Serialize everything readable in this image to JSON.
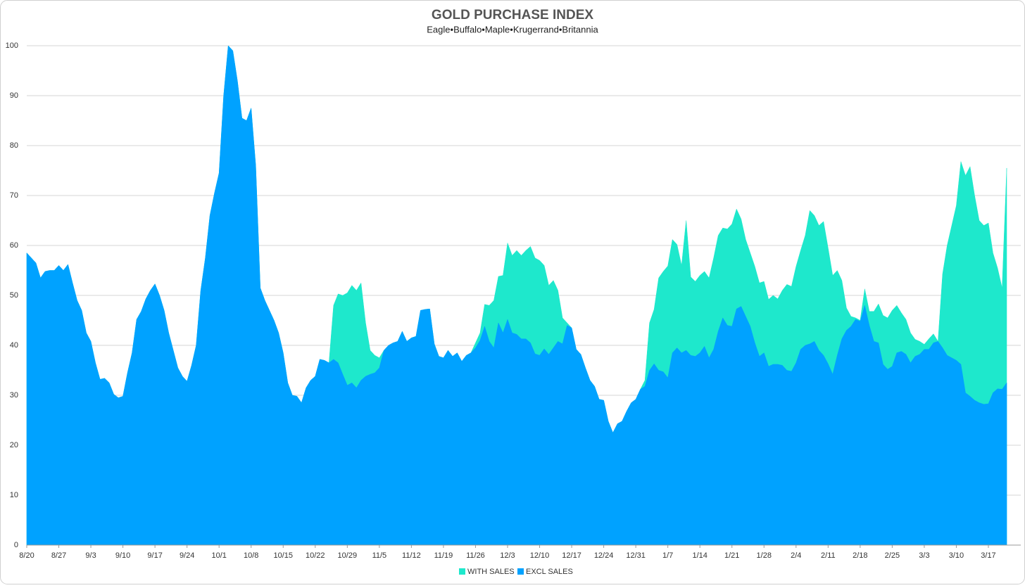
{
  "chart_data": {
    "type": "area",
    "title": "GOLD PURCHASE INDEX",
    "subtitle": "Eagle•Buffalo•Maple•Krugerrand•Britannia",
    "categories": [
      "8/20",
      null,
      null,
      null,
      null,
      null,
      null,
      "8/27",
      null,
      null,
      null,
      null,
      null,
      null,
      "9/3",
      null,
      null,
      null,
      null,
      null,
      null,
      "9/10",
      null,
      null,
      null,
      null,
      null,
      null,
      "9/17",
      null,
      null,
      null,
      null,
      null,
      null,
      "9/24",
      null,
      null,
      null,
      null,
      null,
      null,
      "10/1",
      null,
      null,
      null,
      null,
      null,
      null,
      "10/8",
      null,
      null,
      null,
      null,
      null,
      null,
      "10/15",
      null,
      null,
      null,
      null,
      null,
      null,
      "10/22",
      null,
      null,
      null,
      null,
      null,
      null,
      "10/29",
      null,
      null,
      null,
      null,
      null,
      null,
      "11/5",
      null,
      null,
      null,
      null,
      null,
      null,
      "11/12",
      null,
      null,
      null,
      null,
      null,
      null,
      "11/19",
      null,
      null,
      null,
      null,
      null,
      null,
      "11/26",
      null,
      null,
      null,
      null,
      null,
      null,
      "12/3",
      null,
      null,
      null,
      null,
      null,
      null,
      "12/10",
      null,
      null,
      null,
      null,
      null,
      null,
      "12/17",
      null,
      null,
      null,
      null,
      null,
      null,
      "12/24",
      null,
      null,
      null,
      null,
      null,
      null,
      "12/31",
      null,
      null,
      null,
      null,
      null,
      null,
      "1/7",
      null,
      null,
      null,
      null,
      null,
      null,
      "1/14",
      null,
      null,
      null,
      null,
      null,
      null,
      "1/21",
      null,
      null,
      null,
      null,
      null,
      null,
      "1/28",
      null,
      null,
      null,
      null,
      null,
      null,
      "2/4",
      null,
      null,
      null,
      null,
      null,
      null,
      "2/11",
      null,
      null,
      null,
      null,
      null,
      null,
      "2/18",
      null,
      null,
      null,
      null,
      null,
      null,
      "2/25",
      null,
      null,
      null,
      null,
      null,
      null,
      "3/3",
      null,
      null,
      null,
      null,
      null,
      null,
      "3/10",
      null,
      null,
      null,
      null,
      null,
      null,
      "3/17",
      null,
      null,
      null,
      null
    ],
    "series": [
      {
        "name": "WITH SALES",
        "color": "#1ee8cc",
        "values": [
          58.5,
          57.5,
          56.5,
          53.5,
          54.8,
          55,
          55,
          56,
          55,
          56.2,
          52.5,
          49,
          47,
          42.5,
          40.8,
          36.5,
          33.2,
          33.4,
          32.5,
          30.2,
          29.5,
          29.8,
          34.5,
          38.5,
          45.2,
          46.8,
          49.3,
          51,
          52.3,
          50,
          47,
          42.5,
          39,
          35.5,
          33.8,
          32.8,
          36,
          40,
          51,
          57.5,
          66,
          70.5,
          74.5,
          90,
          100,
          99,
          93,
          85.5,
          85,
          87.5,
          76,
          51.5,
          49,
          47,
          45,
          42.5,
          38.5,
          32.5,
          30,
          29.8,
          28.5,
          31.5,
          33,
          33.8,
          37.2,
          37,
          36.5,
          48,
          50.3,
          50,
          50.5,
          52,
          51,
          52.5,
          44.5,
          39,
          38,
          37.5,
          39,
          40,
          40.5,
          40.8,
          42.8,
          40.8,
          41.5,
          41.8,
          47,
          47.2,
          47.3,
          40.3,
          37.8,
          37.5,
          39,
          37.8,
          38.5,
          36.8,
          38,
          38.5,
          40.5,
          42.5,
          48.2,
          48,
          49,
          53.8,
          54,
          60.5,
          58,
          59,
          58,
          59,
          59.8,
          57.5,
          57,
          56,
          52,
          53,
          51,
          45.5,
          44.5,
          43.5,
          39.2,
          38.2,
          35.5,
          33,
          31.8,
          29.2,
          29,
          24.8,
          22.5,
          24.3,
          24.8,
          26.8,
          28.5,
          29.2,
          31.2,
          33,
          44.5,
          47.2,
          53.5,
          54.8,
          55.9,
          61.2,
          60.2,
          56,
          65,
          53.7,
          52.8,
          54,
          54.8,
          53.5,
          57.5,
          62,
          63.5,
          63.3,
          64.3,
          67.3,
          65.3,
          61.2,
          58.5,
          55.8,
          52.5,
          52.8,
          49.2,
          50,
          49.3,
          51,
          52.2,
          51.8,
          55.8,
          59,
          62,
          67,
          66,
          64,
          64.8,
          59.5,
          54,
          55,
          53,
          47.5,
          45.8,
          45.5,
          45,
          51.3,
          46.8,
          46.8,
          48.3,
          46,
          45.5,
          47,
          48,
          46.5,
          45.2,
          42.5,
          41.2,
          40.8,
          40.2,
          41.3,
          42.3,
          40.8,
          54.3,
          60,
          64,
          68,
          76.8,
          74,
          75.8,
          70,
          65,
          64,
          64.5,
          58.5,
          55.5,
          51.5,
          75.5
        ]
      },
      {
        "name": "EXCL SALES",
        "color": "#00a2ff",
        "values": [
          58.5,
          57.5,
          56.5,
          53.5,
          54.8,
          55,
          55,
          56,
          55,
          56.2,
          52.5,
          49,
          47,
          42.5,
          40.8,
          36.5,
          33.2,
          33.4,
          32.5,
          30.2,
          29.5,
          29.8,
          34.5,
          38.5,
          45.2,
          46.8,
          49.3,
          51,
          52.3,
          50,
          47,
          42.5,
          39,
          35.5,
          33.8,
          32.8,
          36,
          40,
          51,
          57.5,
          66,
          70.5,
          74.5,
          90,
          100,
          99,
          93,
          85.5,
          85,
          87.5,
          76,
          51.5,
          49,
          47,
          45,
          42.5,
          38.5,
          32.5,
          30,
          29.8,
          28.5,
          31.5,
          33,
          33.8,
          37.2,
          37,
          36.5,
          37.2,
          36.5,
          34.2,
          32,
          32.5,
          31.5,
          33,
          33.8,
          34.2,
          34.5,
          35.5,
          39,
          40,
          40.5,
          40.8,
          42.8,
          40.8,
          41.5,
          41.8,
          47,
          47.2,
          47.3,
          40.3,
          37.8,
          37.5,
          39,
          37.8,
          38.5,
          36.8,
          38,
          38.5,
          39.5,
          41,
          43.8,
          40.8,
          39.5,
          44.5,
          42.5,
          45.2,
          42.5,
          42.2,
          41.3,
          41.3,
          40.5,
          38.3,
          38,
          39.3,
          38.2,
          39.5,
          40.8,
          40.3,
          44,
          43.5,
          39.2,
          38.2,
          35.5,
          33,
          31.8,
          29.2,
          29,
          24.8,
          22.5,
          24.3,
          24.8,
          26.8,
          28.5,
          29.2,
          31.2,
          31.8,
          35,
          36.3,
          35,
          34.7,
          33.5,
          38.5,
          39.5,
          38.5,
          39,
          38,
          37.8,
          38.5,
          39.8,
          37.5,
          39.2,
          42.8,
          45.5,
          44,
          43.8,
          47.3,
          47.8,
          45.8,
          43.8,
          40.5,
          37.8,
          38.5,
          35.8,
          36.2,
          36.2,
          36,
          35,
          34.8,
          36.5,
          39.2,
          40,
          40.3,
          40.8,
          39,
          38,
          36.3,
          34.2,
          38,
          41.3,
          43,
          43.8,
          45.2,
          44.8,
          48,
          44,
          40.8,
          40.5,
          36.2,
          35.2,
          35.8,
          38.5,
          38.8,
          38.2,
          36.5,
          37.8,
          38.2,
          39.2,
          39.2,
          40.5,
          40.8,
          39.5,
          38,
          37.5,
          37,
          36.2,
          30.5,
          29.8,
          29,
          28.5,
          28.2,
          28.3,
          30.5,
          31.3,
          31.2,
          32.5
        ]
      }
    ],
    "ylim": [
      0,
      100
    ],
    "yticks": [
      0,
      10,
      20,
      30,
      40,
      50,
      60,
      70,
      80,
      90,
      100
    ],
    "grid": true
  }
}
